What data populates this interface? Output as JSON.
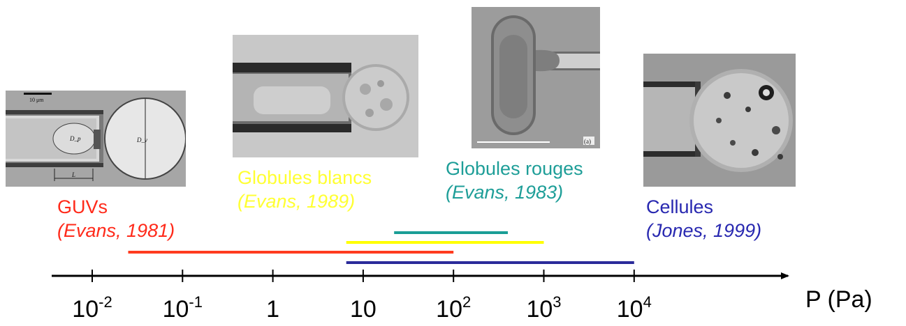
{
  "axis": {
    "label": "P (Pa)",
    "scale": "log",
    "range": [
      0.01,
      10000
    ],
    "ticks": [
      {
        "value": 0.01,
        "base": "10",
        "exp": "-2"
      },
      {
        "value": 0.1,
        "base": "10",
        "exp": "-1"
      },
      {
        "value": 1,
        "base": "1",
        "exp": ""
      },
      {
        "value": 10,
        "base": "10",
        "exp": ""
      },
      {
        "value": 100,
        "base": "10",
        "exp": "2"
      },
      {
        "value": 1000,
        "base": "10",
        "exp": "3"
      },
      {
        "value": 10000,
        "base": "10",
        "exp": "4"
      }
    ]
  },
  "ranges": [
    {
      "id": "guvs",
      "from": 0.025,
      "to": 100,
      "color": "#ff3b1f"
    },
    {
      "id": "blancs",
      "from": 6.5,
      "to": 1000,
      "color": "#ffff00"
    },
    {
      "id": "rouges",
      "from": 22,
      "to": 400,
      "color": "#1a9e96"
    },
    {
      "id": "cellules",
      "from": 6.5,
      "to": 10000,
      "color": "#2b2b9a"
    }
  ],
  "labels": {
    "guvs": {
      "name": "GUVs",
      "ref": "(Evans, 1981)",
      "color": "#ff2a1a"
    },
    "blancs": {
      "name": "Globules blancs",
      "ref": "(Evans, 1989)",
      "color": "#ffff33"
    },
    "rouges": {
      "name": "Globules rouges",
      "ref": "(Evans, 1983)",
      "color": "#1e9e98"
    },
    "cellules": {
      "name": "Cellules",
      "ref": "(Jones, 1999)",
      "color": "#2828b0"
    }
  },
  "photos": {
    "guvs": {
      "scale_text": "10 μm",
      "dp": "D_p",
      "dv": "D_v",
      "l": "L"
    },
    "rouges": {
      "tag": "(a)"
    }
  }
}
